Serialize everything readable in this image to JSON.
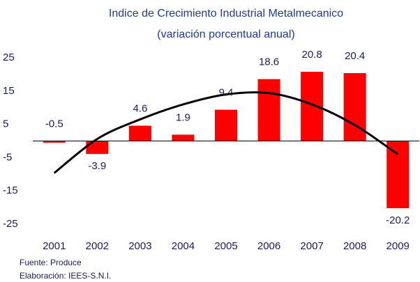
{
  "chart_data": {
    "type": "bar",
    "title": "Indice de Crecimiento Industrial Metalmecanico",
    "subtitle": "(variación porcentual anual)",
    "categories": [
      "2001",
      "2002",
      "2003",
      "2004",
      "2005",
      "2006",
      "2007",
      "2008",
      "2009"
    ],
    "values": [
      -0.5,
      -3.9,
      4.6,
      1.9,
      9.4,
      18.6,
      20.8,
      20.4,
      -20.2
    ],
    "color": "#ff0000",
    "trend": {
      "color": "#000000",
      "values": [
        -9.6,
        0.6,
        6.5,
        11,
        14,
        14.4,
        11,
        4.8,
        -4
      ]
    },
    "ylim": [
      -25,
      25
    ],
    "yticks": [
      -25,
      -15,
      -5,
      5,
      15,
      25
    ],
    "grid": false,
    "notes": [
      "Fuente: Produce",
      "Elaboración: IEES-S.N.I."
    ]
  }
}
